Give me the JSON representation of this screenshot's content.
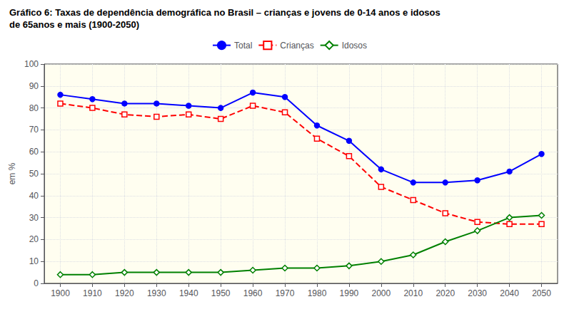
{
  "chart_data": {
    "type": "line",
    "title": "Gráfico 6: Taxas de dependência demográfica no Brasil – crianças e jovens de 0-14 anos e idosos",
    "subtitle": "de 65anos e mais (1900-2050)",
    "y_label": "em %",
    "x": [
      1900,
      1910,
      1920,
      1930,
      1940,
      1950,
      1960,
      1970,
      1980,
      1990,
      2000,
      2010,
      2020,
      2030,
      2040,
      2050
    ],
    "series": [
      {
        "name": "Total",
        "color": "#0000ff",
        "marker": "circle",
        "line_style": "solid",
        "values": [
          86,
          84,
          82,
          82,
          81,
          80,
          87,
          85,
          72,
          65,
          52,
          46,
          46,
          47,
          51,
          59
        ]
      },
      {
        "name": "Crianças",
        "color": "#ff0000",
        "marker": "square",
        "line_style": "dashed",
        "values": [
          82,
          80,
          77,
          76,
          77,
          75,
          81,
          78,
          66,
          58,
          44,
          38,
          32,
          28,
          27,
          27
        ]
      },
      {
        "name": "Idosos",
        "color": "#008000",
        "marker": "diamond",
        "line_style": "solid",
        "values": [
          4,
          4,
          5,
          5,
          5,
          5,
          6,
          7,
          7,
          8,
          10,
          13,
          19,
          24,
          30,
          31
        ]
      }
    ],
    "xlim": [
      1895,
      2055
    ],
    "xticks": [
      1900,
      1910,
      1920,
      1930,
      1940,
      1950,
      1960,
      1970,
      1980,
      1990,
      2000,
      2010,
      2020,
      2030,
      2040,
      2050
    ],
    "ylim": [
      0,
      100
    ],
    "yticks": [
      0,
      10,
      20,
      30,
      40,
      50,
      60,
      70,
      80,
      90,
      100
    ],
    "grid": true,
    "legend": "top"
  }
}
